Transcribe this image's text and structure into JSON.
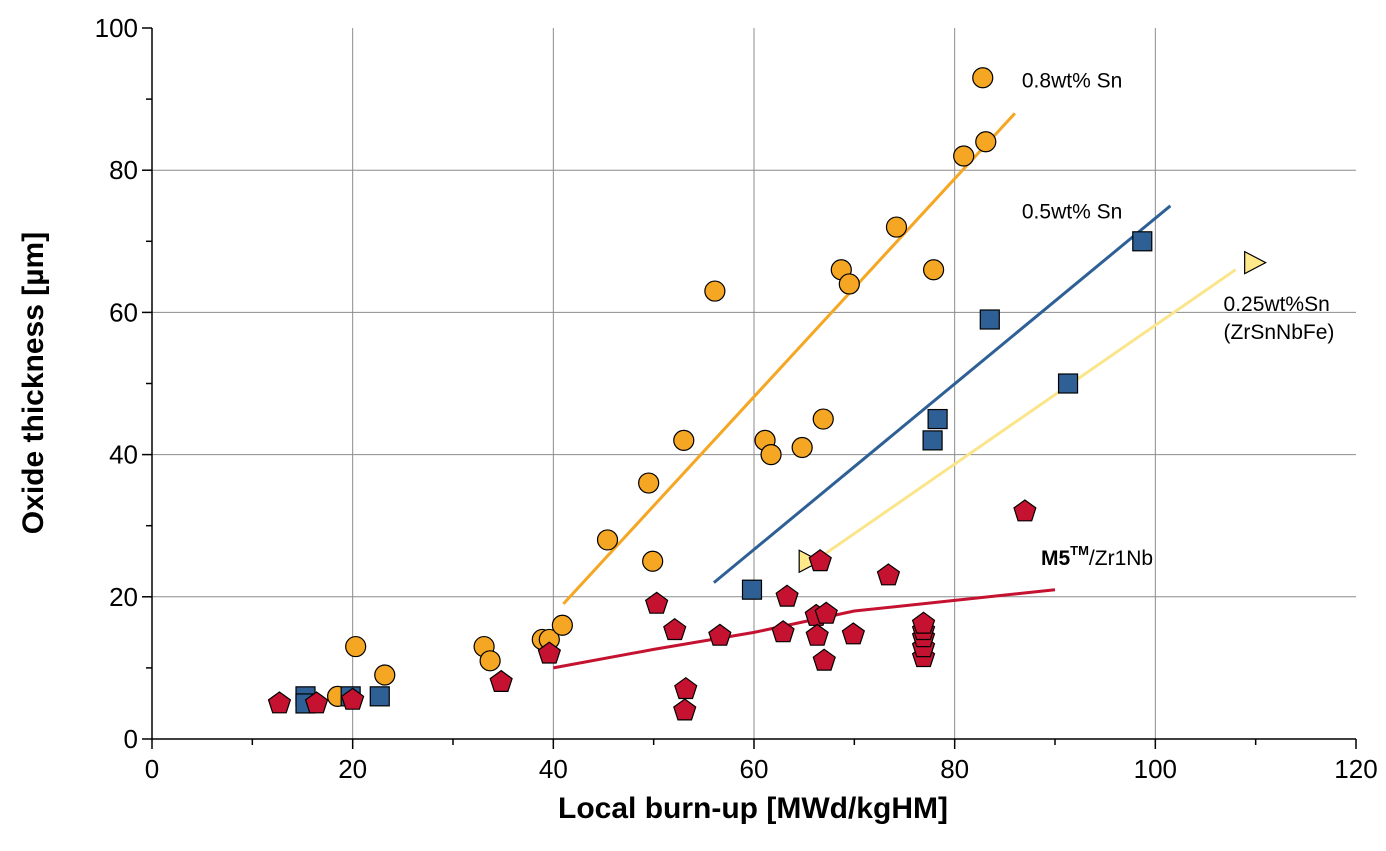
{
  "chart_data": {
    "type": "scatter",
    "title": "",
    "xlabel": "Local burn-up [MWd/kgHM]",
    "ylabel": "Oxide thickness [µm]",
    "xlim": [
      0,
      120
    ],
    "ylim": [
      0,
      100
    ],
    "x_ticks": [
      "0",
      "20",
      "40",
      "60",
      "80",
      "100",
      "120"
    ],
    "y_ticks": [
      "0",
      "20",
      "40",
      "60",
      "80",
      "100"
    ],
    "grid": true,
    "series": [
      {
        "marker": "circle",
        "color": "#F5A623",
        "points": [
          [
            18.5,
            6
          ],
          [
            20.3,
            13
          ],
          [
            23.2,
            9
          ],
          [
            33.1,
            13
          ],
          [
            33.7,
            11
          ],
          [
            38.9,
            14
          ],
          [
            39.6,
            14
          ],
          [
            40.9,
            16
          ],
          [
            45.4,
            28
          ],
          [
            49.5,
            36
          ],
          [
            49.9,
            25
          ],
          [
            53.0,
            42
          ],
          [
            56.1,
            63
          ],
          [
            61.1,
            42
          ],
          [
            61.7,
            40
          ],
          [
            64.8,
            41
          ],
          [
            66.9,
            45
          ],
          [
            68.7,
            66
          ],
          [
            69.5,
            64
          ],
          [
            74.2,
            72
          ],
          [
            77.9,
            66
          ],
          [
            80.9,
            82
          ],
          [
            82.8,
            93
          ],
          [
            83.1,
            84
          ]
        ],
        "fit": [
          [
            41,
            19
          ],
          [
            86,
            88
          ]
        ],
        "fit_color": "#F5A623",
        "label_lines": [
          "0.8wt% Sn"
        ]
      },
      {
        "marker": "square",
        "color": "#2E6096",
        "points": [
          [
            15.3,
            6
          ],
          [
            15.3,
            5
          ],
          [
            19.8,
            6
          ],
          [
            22.7,
            6
          ],
          [
            59.8,
            21
          ],
          [
            77.8,
            42
          ],
          [
            78.3,
            45
          ],
          [
            83.5,
            59
          ],
          [
            91.3,
            50
          ],
          [
            98.7,
            70
          ]
        ],
        "fit": [
          [
            56,
            22
          ],
          [
            101.5,
            75
          ]
        ],
        "fit_color": "#2E6096",
        "label_lines": [
          "0.5wt% Sn"
        ]
      },
      {
        "marker": "triangle-right",
        "color": "#FFE98A",
        "points": [
          [
            65.4,
            25
          ],
          [
            109.8,
            67
          ]
        ],
        "fit": [
          [
            65.5,
            24.5
          ],
          [
            108,
            66
          ]
        ],
        "fit_color": "#FBE58B",
        "label_lines": [
          "0.25wt%Sn",
          "(ZrSnNbFe)"
        ]
      },
      {
        "marker": "pentagon",
        "color": "#C41230",
        "points": [
          [
            12.7,
            5
          ],
          [
            16.4,
            5
          ],
          [
            20.0,
            5.5
          ],
          [
            34.8,
            8
          ],
          [
            39.6,
            12
          ],
          [
            50.3,
            19
          ],
          [
            52.1,
            15.3
          ],
          [
            53.1,
            4
          ],
          [
            53.2,
            7
          ],
          [
            56.6,
            14.5
          ],
          [
            62.9,
            15
          ],
          [
            63.3,
            20
          ],
          [
            66.2,
            17.3
          ],
          [
            66.3,
            14.5
          ],
          [
            66.6,
            25
          ],
          [
            67.0,
            11
          ],
          [
            67.2,
            17.6
          ],
          [
            69.9,
            14.7
          ],
          [
            73.4,
            23
          ],
          [
            76.9,
            11.5
          ],
          [
            76.9,
            12.9
          ],
          [
            76.9,
            14.3
          ],
          [
            76.9,
            15.3
          ],
          [
            76.9,
            16.2
          ],
          [
            87.0,
            32
          ]
        ],
        "fit": [
          [
            40,
            10
          ],
          [
            50,
            12.6
          ],
          [
            60,
            15
          ],
          [
            70,
            18
          ],
          [
            80,
            19.5
          ],
          [
            90,
            21
          ]
        ],
        "fit_color": "#C41230",
        "label_bold": "M5",
        "label_sup": "TM",
        "label_rest": "/Zr1Nb"
      }
    ]
  }
}
